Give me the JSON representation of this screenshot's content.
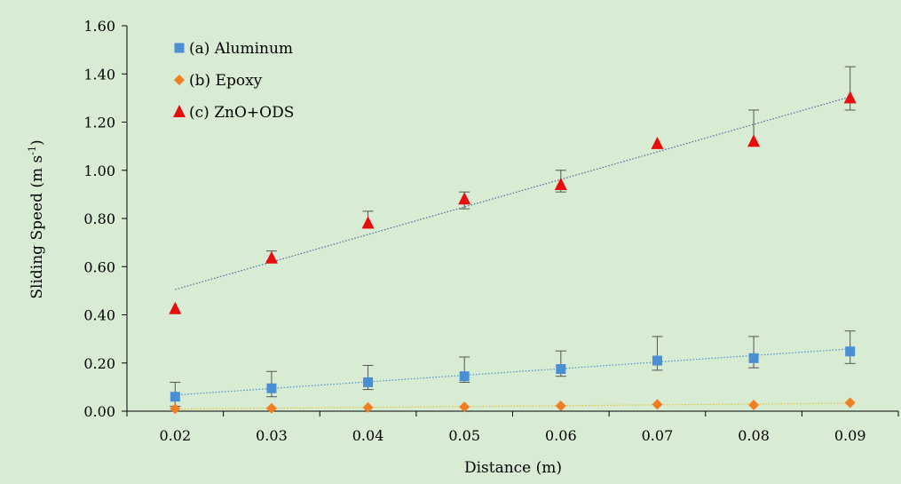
{
  "chart_data": {
    "type": "scatter",
    "background": "#d8ebd3",
    "xlabel": "Distance (m)",
    "ylabel_main": "Sliding Speed  (m s",
    "ylabel_sup": "-1",
    "ylabel_tail": ")",
    "xlim": [
      0.015,
      0.095
    ],
    "ylim": [
      0,
      1.6
    ],
    "x_ticks": [
      0.02,
      0.03,
      0.04,
      0.05,
      0.06,
      0.07,
      0.08,
      0.09
    ],
    "x_tick_labels": [
      "0.02",
      "0.03",
      "0.04",
      "0.05",
      "0.06",
      "0.07",
      "0.08",
      "0.09"
    ],
    "y_ticks": [
      0,
      0.2,
      0.4,
      0.6,
      0.8,
      1.0,
      1.2,
      1.4,
      1.6
    ],
    "y_tick_labels": [
      "0.00",
      "0.20",
      "0.40",
      "0.60",
      "0.80",
      "1.00",
      "1.20",
      "1.40",
      "1.60"
    ],
    "grid": false,
    "legend_position": "top-left",
    "series": [
      {
        "name": "(a) Aluminum",
        "marker": "square",
        "color": "#4a8fd4",
        "trend_color": "#4a8fd4",
        "x": [
          0.02,
          0.03,
          0.04,
          0.05,
          0.06,
          0.07,
          0.08,
          0.09
        ],
        "y": [
          0.06,
          0.095,
          0.12,
          0.145,
          0.175,
          0.21,
          0.22,
          0.248
        ],
        "err_plus": [
          0.06,
          0.07,
          0.07,
          0.08,
          0.075,
          0.1,
          0.09,
          0.085
        ],
        "err_minus": [
          0.04,
          0.035,
          0.03,
          0.025,
          0.03,
          0.04,
          0.04,
          0.05
        ],
        "trend": [
          0.067,
          0.2587
        ]
      },
      {
        "name": "(b) Epoxy",
        "marker": "diamond",
        "color": "#ef7f22",
        "trend_color": "#e3c22a",
        "x": [
          0.02,
          0.03,
          0.04,
          0.05,
          0.06,
          0.07,
          0.08,
          0.09
        ],
        "y": [
          0.01,
          0.012,
          0.015,
          0.018,
          0.022,
          0.028,
          0.026,
          0.035
        ],
        "err_plus": [
          0,
          0,
          0,
          0,
          0,
          0,
          0,
          0
        ],
        "err_minus": [
          0,
          0,
          0,
          0,
          0,
          0,
          0,
          0
        ],
        "trend": [
          0.009,
          0.033
        ]
      },
      {
        "name": "(c)  ZnO+ODS",
        "marker": "triangle",
        "color": "#e80c0c",
        "trend_color": "#3f6f9f",
        "x": [
          0.02,
          0.03,
          0.04,
          0.05,
          0.06,
          0.07,
          0.08,
          0.09
        ],
        "y": [
          0.425,
          0.635,
          0.78,
          0.88,
          0.94,
          1.11,
          1.12,
          1.3
        ],
        "err_plus": [
          0,
          0.03,
          0.05,
          0.03,
          0.06,
          0,
          0.13,
          0.13
        ],
        "err_minus": [
          0,
          0.01,
          0.02,
          0.04,
          0.03,
          0,
          0.02,
          0.05
        ],
        "trend": [
          0.505,
          1.305
        ]
      }
    ]
  }
}
